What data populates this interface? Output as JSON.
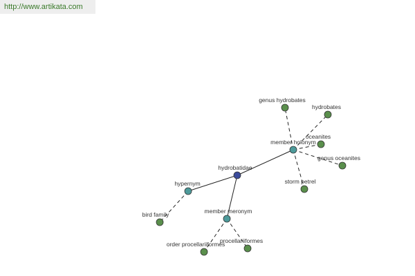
{
  "header": {
    "link": "http://www.artikata.com"
  },
  "nodes": [
    {
      "label": "hydrobatidae"
    },
    {
      "label": "hypernym"
    },
    {
      "label": "member meronym"
    },
    {
      "label": "member holonym"
    },
    {
      "label": "bird family"
    },
    {
      "label": "order procellariiformes"
    },
    {
      "label": "procellariiformes"
    },
    {
      "label": "genus hydrobates"
    },
    {
      "label": "hydrobates"
    },
    {
      "label": "oceanites"
    },
    {
      "label": "genus oceanites"
    },
    {
      "label": "storm petrel"
    }
  ]
}
